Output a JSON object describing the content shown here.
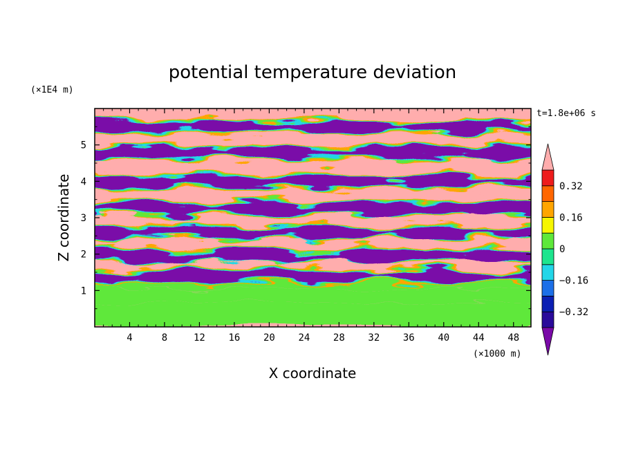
{
  "chart_data": {
    "type": "heatmap",
    "title": "potential temperature deviation",
    "xlabel": "X coordinate",
    "ylabel": "Z coordinate",
    "x_unit": "(×1000 m)",
    "y_unit": "(×1E4 m)",
    "time_label": "t=1.8e+06 s",
    "xlim": [
      0,
      50
    ],
    "ylim": [
      0,
      6
    ],
    "x_ticks": [
      4,
      8,
      12,
      16,
      20,
      24,
      28,
      32,
      36,
      40,
      44,
      48
    ],
    "x_tick_labels": [
      "4",
      "8",
      "12",
      "16",
      "20",
      "24",
      "28",
      "32",
      "36",
      "40",
      "44",
      "48"
    ],
    "y_ticks": [
      1,
      2,
      3,
      4,
      5
    ],
    "y_tick_labels": [
      "1",
      "2",
      "3",
      "4",
      "5"
    ],
    "colorbar": {
      "levels": [
        -0.4,
        -0.32,
        -0.24,
        -0.16,
        -0.08,
        0,
        0.08,
        0.16,
        0.24,
        0.32,
        0.4
      ],
      "tick_values": [
        -0.32,
        -0.16,
        0,
        0.16,
        0.32
      ],
      "tick_labels": [
        "−0.32",
        "−0.16",
        "0",
        "0.16",
        "0.32"
      ],
      "colors": [
        "#7a0aa8",
        "#2a0a9a",
        "#0b1fb3",
        "#1c6fe8",
        "#22d6e8",
        "#1de58e",
        "#5ee83a",
        "#f6f600",
        "#ffa500",
        "#ff6600",
        "#ee1c1c",
        "#ffadad"
      ],
      "extend": "both"
    },
    "stripes": [
      {
        "z": 5.8,
        "value": 0.45
      },
      {
        "z": 5.5,
        "value": -0.45
      },
      {
        "z": 5.1,
        "value": 0.45
      },
      {
        "z": 4.8,
        "value": -0.45
      },
      {
        "z": 4.4,
        "value": 0.45
      },
      {
        "z": 4.0,
        "value": -0.45
      },
      {
        "z": 3.6,
        "value": 0.45
      },
      {
        "z": 3.25,
        "value": -0.45
      },
      {
        "z": 2.9,
        "value": 0.45
      },
      {
        "z": 2.6,
        "value": -0.45
      },
      {
        "z": 2.25,
        "value": 0.45
      },
      {
        "z": 1.95,
        "value": -0.45
      },
      {
        "z": 1.65,
        "value": 0.45
      },
      {
        "z": 1.4,
        "value": -0.45
      }
    ],
    "lower_layer": [
      {
        "z0": 1.05,
        "z1": 1.3,
        "value": 0.0
      },
      {
        "z0": 0.65,
        "z1": 1.05,
        "value": 0.05
      },
      {
        "z0": 0.0,
        "z1": 0.65,
        "value": 0.02
      }
    ]
  }
}
